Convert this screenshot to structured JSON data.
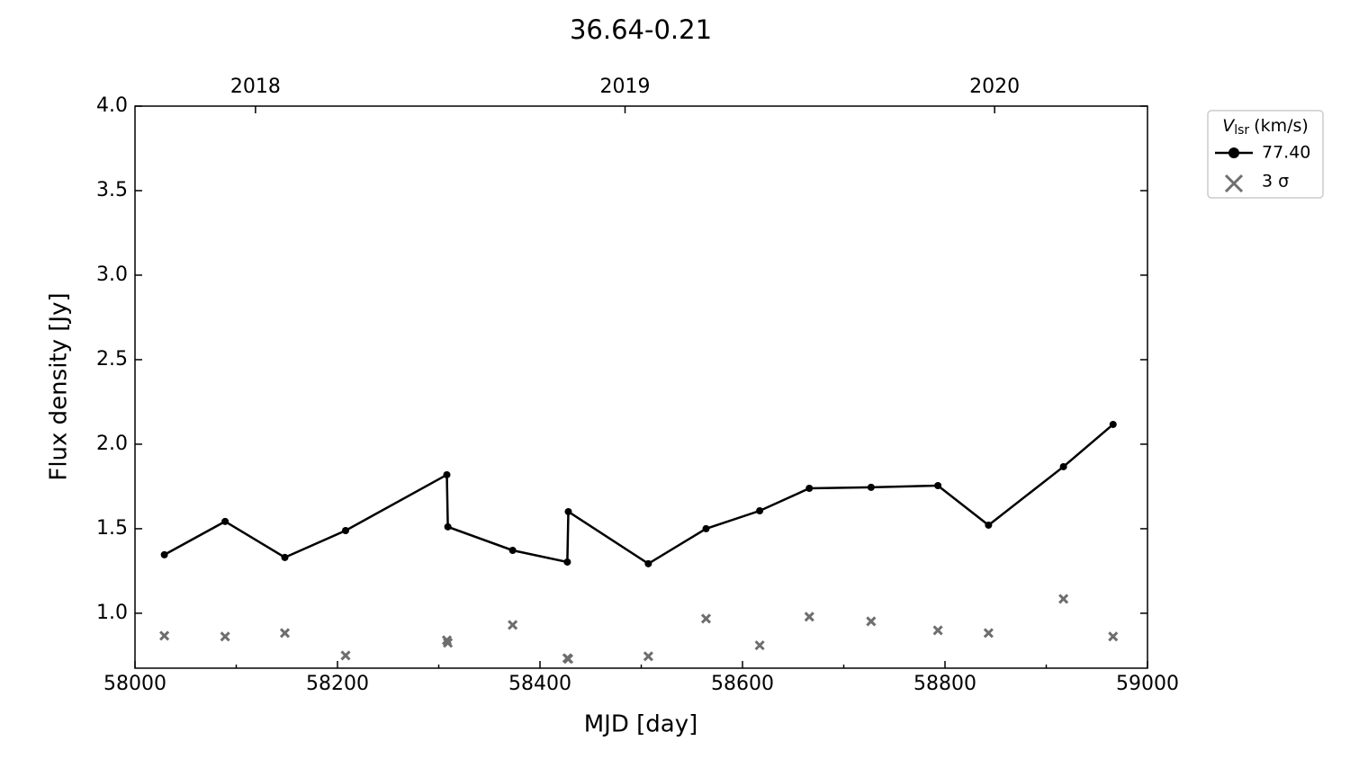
{
  "chart_data": {
    "type": "line",
    "title": "36.64-0.21",
    "x_label": "MJD [day]",
    "y_label": "Flux density [Jy]",
    "legend_title_symbol": "V",
    "legend_title_subscript": "lsr",
    "legend_title_unit": "(km/s)",
    "legend_position": "outside-right",
    "xlim": [
      58000,
      59000
    ],
    "xticks": [
      58000,
      58200,
      58400,
      58600,
      58800,
      59000
    ],
    "xminorticks": [
      58100,
      58300,
      58500,
      58700,
      58900
    ],
    "x2ticks": [
      {
        "value": 58119,
        "label": "2018"
      },
      {
        "value": 58484,
        "label": "2019"
      },
      {
        "value": 58849,
        "label": "2020"
      }
    ],
    "ylim": [
      0.675,
      4.0
    ],
    "yticks": [
      {
        "value": 1.0,
        "label": "1.0"
      },
      1.5,
      {
        "value": 2.0,
        "label": "2.0"
      },
      2.5,
      {
        "value": 3.0,
        "label": "3.0"
      },
      3.5,
      {
        "value": 4.0,
        "label": "4.0"
      }
    ],
    "grid": false,
    "x": [
      58029,
      58089,
      58148,
      58208,
      58308,
      58309,
      58373,
      58427,
      58428,
      58507,
      58564,
      58617,
      58666,
      58727,
      58793,
      58843,
      58917,
      58966
    ],
    "series": [
      {
        "name": "77.40",
        "color": "#000000",
        "marker": "o",
        "line": true,
        "values": [
          1.346,
          1.543,
          1.33,
          1.489,
          1.819,
          1.511,
          1.372,
          1.303,
          1.601,
          1.293,
          1.5,
          1.606,
          1.739,
          1.745,
          1.755,
          1.521,
          1.867,
          2.117
        ]
      },
      {
        "name": "3 σ",
        "color": "#6e6e6e",
        "marker": "x",
        "line": false,
        "values": [
          0.867,
          0.862,
          0.883,
          0.75,
          0.84,
          0.825,
          0.931,
          0.734,
          0.73,
          0.745,
          0.968,
          0.81,
          0.979,
          0.952,
          0.899,
          0.883,
          1.085,
          0.862
        ]
      }
    ]
  }
}
